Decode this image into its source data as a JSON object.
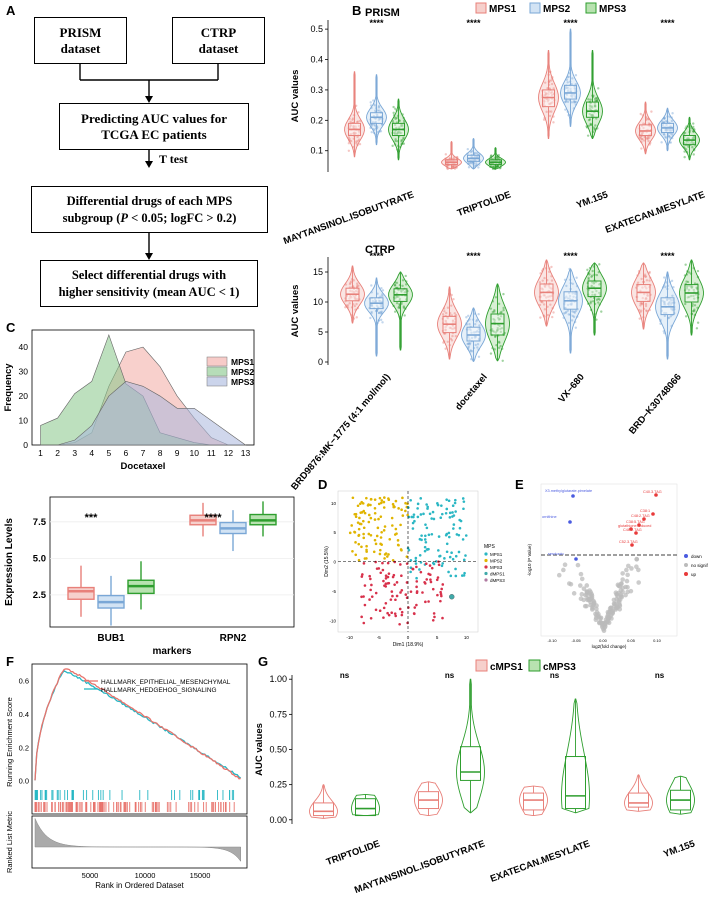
{
  "panels": {
    "a": "A",
    "b": "B",
    "c": "C",
    "d": "D",
    "e": "E",
    "f": "F",
    "g": "G"
  },
  "flowchart": {
    "prism_box": "PRISM\ndataset",
    "ctrp_box": "CTRP\ndataset",
    "predict_box": "Predicting AUC values for\nTCGA EC patients",
    "ttest_label": "T test",
    "diff_box_line1": "Differential drugs of each MPS",
    "diff_box_line2_pre": "subgroup (",
    "diff_box_p": "P",
    "diff_box_line2_mid": " < 0.05; logFC > 0.2)",
    "select_box": "Select differential drugs with\nhigher sensitivity (mean AUC < 1)"
  },
  "colors": {
    "mps1": "#e8807a",
    "mps2": "#7aa7d6",
    "mps3": "#2e9e2e",
    "mps1_fill": "#f6d0cc",
    "mps2_fill": "#d2e3f4",
    "mps3_fill": "#b8e2b0",
    "dmps1": "#3fa9a9",
    "dmps3": "#b07aa1",
    "d_mps1": "#2bb7c4",
    "d_mps2": "#e0b400",
    "d_mps3": "#d8314b",
    "e_down": "#4a5be0",
    "e_up": "#e83a3a",
    "e_nosig": "#bbbbbb",
    "f_red": "#e8736c",
    "f_cyan": "#27b7c4"
  },
  "chart_data": [
    {
      "id": "B-PRISM",
      "type": "violin-box",
      "title": "PRISM",
      "ylabel": "AUC values",
      "ylim": [
        0.03,
        0.53
      ],
      "yticks": [
        "0.1",
        "0.2",
        "0.3",
        "0.4",
        "0.5"
      ],
      "legend": [
        "MPS1",
        "MPS2",
        "MPS3"
      ],
      "categories": [
        "MAYTANSINOL.ISOBUTYRATE",
        "TRIPTOLIDE",
        "YM.155",
        "EXATECAN.MESYLATE"
      ],
      "significance": [
        "****",
        "****",
        "****",
        "****"
      ],
      "series": [
        {
          "name": "MPS1",
          "q1": [
            0.15,
            0.055,
            0.245,
            0.15
          ],
          "median": [
            0.17,
            0.062,
            0.275,
            0.165
          ],
          "q3": [
            0.19,
            0.07,
            0.3,
            0.185
          ],
          "min": [
            0.08,
            0.04,
            0.14,
            0.09
          ],
          "max": [
            0.36,
            0.13,
            0.43,
            0.26
          ]
        },
        {
          "name": "MPS2",
          "q1": [
            0.19,
            0.065,
            0.27,
            0.16
          ],
          "median": [
            0.21,
            0.075,
            0.29,
            0.175
          ],
          "q3": [
            0.225,
            0.085,
            0.315,
            0.19
          ],
          "min": [
            0.12,
            0.04,
            0.18,
            0.1
          ],
          "max": [
            0.35,
            0.14,
            0.5,
            0.24
          ]
        },
        {
          "name": "MPS3",
          "q1": [
            0.15,
            0.055,
            0.21,
            0.12
          ],
          "median": [
            0.17,
            0.062,
            0.23,
            0.135
          ],
          "q3": [
            0.19,
            0.07,
            0.26,
            0.15
          ],
          "min": [
            0.07,
            0.04,
            0.14,
            0.07
          ],
          "max": [
            0.27,
            0.11,
            0.43,
            0.21
          ]
        }
      ]
    },
    {
      "id": "B-CTRP",
      "type": "violin-box",
      "title": "CTRP",
      "ylabel": "AUC values",
      "ylim": [
        -0.5,
        17.5
      ],
      "yticks": [
        "0",
        "5",
        "10",
        "15"
      ],
      "categories": [
        "BRD9876:MK−1775 (4:1 mol/mol)",
        "docetaxel",
        "VX−680",
        "BRD−K30748066"
      ],
      "significance": [
        "****",
        "****",
        "****",
        "****"
      ],
      "series": [
        {
          "name": "MPS1",
          "q1": [
            10.2,
            4.9,
            10.2,
            10.1
          ],
          "median": [
            11.3,
            6.3,
            11.6,
            11.6
          ],
          "q3": [
            12.3,
            7.6,
            13.0,
            12.9
          ],
          "min": [
            6.5,
            0.5,
            6.0,
            5.5
          ],
          "max": [
            16.0,
            12.5,
            17.0,
            16.5
          ]
        },
        {
          "name": "MPS2",
          "q1": [
            8.9,
            3.5,
            8.8,
            7.9
          ],
          "median": [
            9.8,
            4.5,
            10.2,
            9.2
          ],
          "q3": [
            10.7,
            5.8,
            11.7,
            10.7
          ],
          "min": [
            1.0,
            0.1,
            1.5,
            0.5
          ],
          "max": [
            14.0,
            9.0,
            15.5,
            15.0
          ]
        },
        {
          "name": "MPS3",
          "q1": [
            10.1,
            4.5,
            10.9,
            10.0
          ],
          "median": [
            11.2,
            6.4,
            12.3,
            11.5
          ],
          "q3": [
            12.2,
            8.0,
            13.5,
            12.9
          ],
          "min": [
            2.0,
            0.2,
            4.5,
            4.5
          ],
          "max": [
            15.0,
            13.0,
            16.5,
            17.0
          ]
        }
      ]
    },
    {
      "id": "C-top",
      "type": "area",
      "xlabel": "Docetaxel",
      "ylabel": "Frequency",
      "x": [
        1,
        2,
        3,
        4,
        5,
        6,
        7,
        8,
        9,
        10,
        11,
        12,
        13
      ],
      "ylim": [
        0,
        47
      ],
      "yticks": [
        "0",
        "10",
        "20",
        "30",
        "40"
      ],
      "legend": [
        "MPS1",
        "MPS2",
        "MPS3"
      ],
      "series": [
        {
          "name": "MPS1",
          "values": [
            0,
            0,
            1,
            5,
            24,
            38,
            40,
            32,
            20,
            11,
            3,
            0,
            0
          ],
          "color": "#f2a9a3"
        },
        {
          "name": "MPS2",
          "values": [
            8,
            11,
            21,
            26,
            45,
            25,
            20,
            5,
            3,
            1,
            0,
            0,
            0
          ],
          "color": "#86c788"
        },
        {
          "name": "MPS3",
          "values": [
            0,
            0,
            2,
            8,
            20,
            26,
            24,
            20,
            15,
            15,
            10,
            5,
            0
          ],
          "color": "#a9b7dd"
        }
      ]
    },
    {
      "id": "C-bottom",
      "type": "box",
      "xlabel": "markers",
      "ylabel": "Expression Levels",
      "ylim": [
        0.3,
        9.2
      ],
      "yticks": [
        "2.5",
        "5.0",
        "7.5"
      ],
      "categories": [
        "BUB1",
        "RPN2"
      ],
      "significance": [
        "***",
        "****"
      ],
      "series": [
        {
          "name": "MPS1",
          "q1": [
            2.2,
            7.3
          ],
          "median": [
            2.75,
            7.6
          ],
          "q3": [
            3.0,
            7.95
          ],
          "min": [
            1.0,
            6.5
          ],
          "max": [
            4.5,
            8.8
          ]
        },
        {
          "name": "MPS2",
          "q1": [
            1.6,
            6.7
          ],
          "median": [
            2.0,
            7.05
          ],
          "q3": [
            2.45,
            7.45
          ],
          "min": [
            0.4,
            5.5
          ],
          "max": [
            3.8,
            8.3
          ]
        },
        {
          "name": "MPS3",
          "q1": [
            2.6,
            7.3
          ],
          "median": [
            3.1,
            7.6
          ],
          "q3": [
            3.5,
            8.0
          ],
          "min": [
            1.5,
            6.5
          ],
          "max": [
            4.8,
            8.9
          ]
        }
      ]
    },
    {
      "id": "D",
      "type": "scatter",
      "xlabel": "Dim1 (18.9%)",
      "ylabel": "Dim2 (15.5%)",
      "xticks": [
        "-10",
        "-5",
        "0",
        "5",
        "10"
      ],
      "yticks": [
        "10",
        "5",
        "0",
        "-5",
        "-10"
      ],
      "legend_title": "MPS",
      "legend": [
        "MPS1",
        "MPS2",
        "MPS3",
        "dMPS1",
        "dMPS3"
      ]
    },
    {
      "id": "E",
      "type": "volcano",
      "xlabel": "log2(fold change)",
      "ylabel": "-log10 (P Value)",
      "xticks": [
        "-0.10",
        "-0.05",
        "0.00",
        "0.05",
        "0.10"
      ],
      "legend": [
        "down",
        "no signif",
        "up"
      ],
      "labels_down": [
        "X3.methylglutarate.pimelate",
        "ornithine",
        "serotonin"
      ],
      "labels_up": [
        "C40.3.TAG",
        "C38:1",
        "C48:2.TAG",
        "C38:5.TAG",
        "glutathione.reduced",
        "C46.2.TAG",
        "C52.3.TAG"
      ]
    },
    {
      "id": "F",
      "type": "gsea",
      "ylabel_top": "Running Enrichment Score",
      "ylabel_bottom": "Ranked List Metric",
      "xlabel": "Rank in Ordered Dataset",
      "xticks": [
        "5000",
        "10000",
        "15000"
      ],
      "yticks": [
        "0.0",
        "0.2",
        "0.4",
        "0.6"
      ],
      "legend": [
        "HALLMARK_EPITHELIAL_MESENCHYMAL",
        "HALLMARK_HEDGEHOG_SIGNALING"
      ]
    },
    {
      "id": "G",
      "type": "violin-box",
      "ylabel": "AUC values",
      "ylim": [
        -0.03,
        1.03
      ],
      "yticks": [
        "0.00",
        "0.25",
        "0.50",
        "0.75",
        "1.00"
      ],
      "legend": [
        "cMPS1",
        "cMPS3"
      ],
      "categories": [
        "TRIPTOLIDE",
        "MAYTANSINOL.ISOBUTYRATE",
        "EXATECAN.MESYLATE",
        "YM.155"
      ],
      "significance": [
        "ns",
        "ns",
        "ns",
        "ns"
      ],
      "series": [
        {
          "name": "cMPS1",
          "q1": [
            0.03,
            0.08,
            0.07,
            0.09
          ],
          "median": [
            0.06,
            0.14,
            0.14,
            0.12
          ],
          "q3": [
            0.12,
            0.2,
            0.19,
            0.19
          ],
          "min": [
            0.01,
            0.03,
            0.03,
            0.06
          ],
          "max": [
            0.25,
            0.27,
            0.24,
            0.32
          ]
        },
        {
          "name": "cMPS3",
          "q1": [
            0.03,
            0.28,
            0.08,
            0.07
          ],
          "median": [
            0.08,
            0.34,
            0.17,
            0.14
          ],
          "q3": [
            0.15,
            0.52,
            0.45,
            0.21
          ],
          "min": [
            0.03,
            0.05,
            0.05,
            0.04
          ],
          "max": [
            0.18,
            1.0,
            0.86,
            0.31
          ]
        }
      ]
    }
  ]
}
